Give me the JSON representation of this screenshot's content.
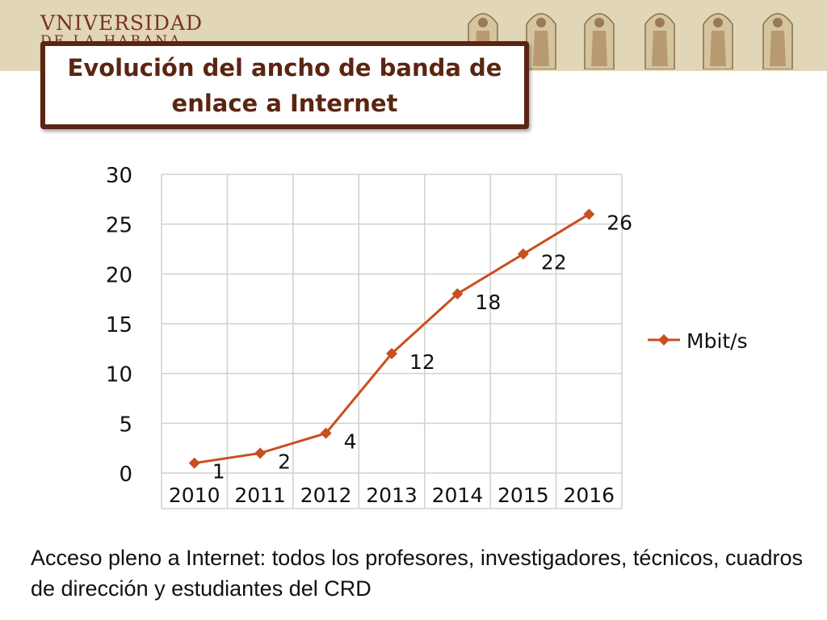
{
  "header": {
    "logo_line1": "VNIVERSIDAD",
    "logo_line2": "DE LA HABANA"
  },
  "title": "Evolución del ancho de banda de enlace a Internet",
  "colors": {
    "band": "#e1d6b7",
    "title_border": "#5b2512",
    "series": "#c94f20",
    "grid": "#d0d0d0"
  },
  "footer": {
    "text": "Acceso pleno a Internet: todos los profesores, investigadores, técnicos, cuadros de dirección y estudiantes del CRD"
  },
  "chart_data": {
    "type": "line",
    "title": "",
    "xlabel": "",
    "ylabel": "",
    "categories": [
      "2010",
      "2011",
      "2012",
      "2013",
      "2014",
      "2015",
      "2016"
    ],
    "series": [
      {
        "name": "Mbit/s",
        "values": [
          1,
          2,
          4,
          12,
          18,
          22,
          26
        ]
      }
    ],
    "ylim": [
      0,
      30
    ],
    "yticks": [
      0,
      5,
      10,
      15,
      20,
      25,
      30
    ],
    "grid": true,
    "legend": "right",
    "data_labels": true
  }
}
